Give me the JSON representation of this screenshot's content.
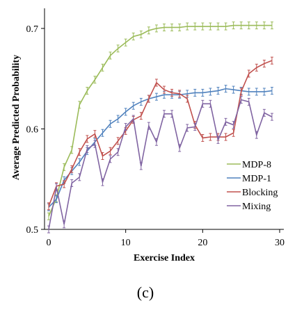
{
  "chart_data": {
    "type": "line",
    "title": "",
    "xlabel": "Exercise Index",
    "ylabel": "Average Predicted Probability",
    "caption": "(c)",
    "xlim": [
      0,
      30
    ],
    "ylim": [
      0.5,
      0.72
    ],
    "xticks": [
      0,
      10,
      20,
      30
    ],
    "yticks": [
      0.5,
      0.6,
      0.7
    ],
    "ytick_labels": [
      "0.5",
      "0.6",
      "0.7"
    ],
    "xtick_labels": [
      "0",
      "10",
      "20",
      "30"
    ],
    "grid": false,
    "legend_position": "lower-right",
    "series": [
      {
        "name": "MDP-8",
        "color": "#9bbb59",
        "x": [
          0,
          1,
          2,
          3,
          4,
          5,
          6,
          7,
          8,
          9,
          10,
          11,
          12,
          13,
          14,
          15,
          16,
          17,
          18,
          19,
          20,
          21,
          22,
          23,
          24,
          25,
          26,
          27,
          28,
          29
        ],
        "y": [
          0.513,
          0.531,
          0.562,
          0.579,
          0.624,
          0.638,
          0.649,
          0.661,
          0.673,
          0.68,
          0.686,
          0.692,
          0.694,
          0.698,
          0.7,
          0.701,
          0.701,
          0.701,
          0.702,
          0.702,
          0.702,
          0.702,
          0.702,
          0.702,
          0.703,
          0.703,
          0.703,
          0.703,
          0.703,
          0.703
        ]
      },
      {
        "name": "MDP-1",
        "color": "#4f81bd",
        "x": [
          0,
          1,
          2,
          3,
          4,
          5,
          6,
          7,
          8,
          9,
          10,
          11,
          12,
          13,
          14,
          15,
          16,
          17,
          18,
          19,
          20,
          21,
          22,
          23,
          24,
          25,
          26,
          27,
          28,
          29
        ],
        "y": [
          0.522,
          0.53,
          0.549,
          0.558,
          0.567,
          0.578,
          0.587,
          0.596,
          0.605,
          0.61,
          0.617,
          0.623,
          0.627,
          0.63,
          0.632,
          0.634,
          0.634,
          0.634,
          0.635,
          0.636,
          0.636,
          0.637,
          0.638,
          0.64,
          0.639,
          0.638,
          0.637,
          0.637,
          0.637,
          0.638
        ]
      },
      {
        "name": "Blocking",
        "color": "#c0504d",
        "x": [
          0,
          1,
          2,
          3,
          4,
          5,
          6,
          7,
          8,
          9,
          10,
          11,
          12,
          13,
          14,
          15,
          16,
          17,
          18,
          19,
          20,
          21,
          22,
          23,
          24,
          25,
          26,
          27,
          28,
          29
        ],
        "y": [
          0.523,
          0.543,
          0.545,
          0.56,
          0.577,
          0.59,
          0.595,
          0.573,
          0.578,
          0.588,
          0.598,
          0.609,
          0.613,
          0.63,
          0.646,
          0.639,
          0.636,
          0.635,
          0.63,
          0.604,
          0.591,
          0.592,
          0.592,
          0.592,
          0.596,
          0.637,
          0.655,
          0.661,
          0.665,
          0.668
        ]
      },
      {
        "name": "Mixing",
        "color": "#8064a2",
        "x": [
          0,
          1,
          2,
          3,
          4,
          5,
          6,
          7,
          8,
          9,
          10,
          11,
          12,
          13,
          14,
          15,
          16,
          17,
          18,
          19,
          20,
          21,
          22,
          23,
          24,
          25,
          26,
          27,
          28,
          29
        ],
        "y": [
          0.5,
          0.542,
          0.505,
          0.546,
          0.552,
          0.58,
          0.585,
          0.547,
          0.57,
          0.577,
          0.602,
          0.61,
          0.563,
          0.603,
          0.587,
          0.615,
          0.615,
          0.581,
          0.601,
          0.602,
          0.625,
          0.625,
          0.589,
          0.607,
          0.604,
          0.629,
          0.627,
          0.594,
          0.616,
          0.612
        ]
      }
    ]
  }
}
